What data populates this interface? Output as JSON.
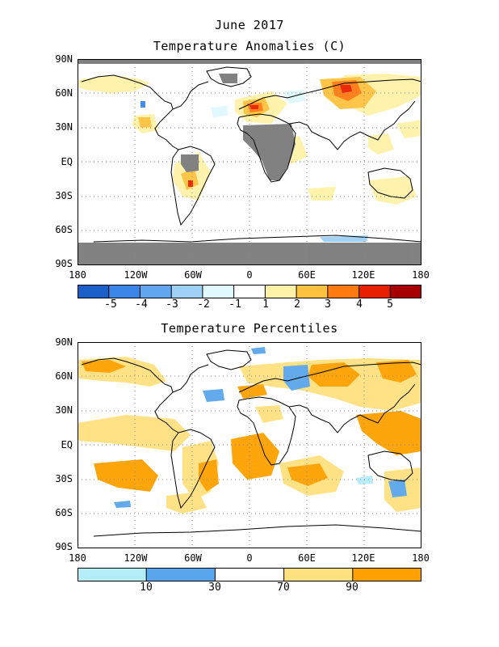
{
  "header": {
    "line1": "June 2017",
    "line2": "Temperature Anomalies (C)"
  },
  "bottom": {
    "title": "Temperature Percentiles"
  },
  "lat_labels": [
    "90N",
    "60N",
    "30N",
    "EQ",
    "30S",
    "60S",
    "90S"
  ],
  "lon_labels": [
    "180",
    "120W",
    "60W",
    "0",
    "60E",
    "120E",
    "180"
  ],
  "anomaly_scale": {
    "colors": [
      "#1d5fc9",
      "#3a86e8",
      "#63a6f0",
      "#9fd0f8",
      "#e0f8ff",
      "#ffffff",
      "#fff2a8",
      "#ffc240",
      "#ff7a10",
      "#e82000",
      "#a80000"
    ],
    "labels": [
      "-5",
      "-4",
      "-3",
      "-2",
      "-1",
      "1",
      "2",
      "3",
      "4",
      "5"
    ]
  },
  "percentile_scale": {
    "colors": [
      "#b4ecf8",
      "#5aa6ec",
      "#ffffff",
      "#ffe180",
      "#ffa100"
    ],
    "labels": [
      "10",
      "30",
      "70",
      "90"
    ]
  },
  "colors": {
    "no_data": "#7b7b7b",
    "land_outline": "#000000",
    "grid": "#8a8a8a"
  }
}
